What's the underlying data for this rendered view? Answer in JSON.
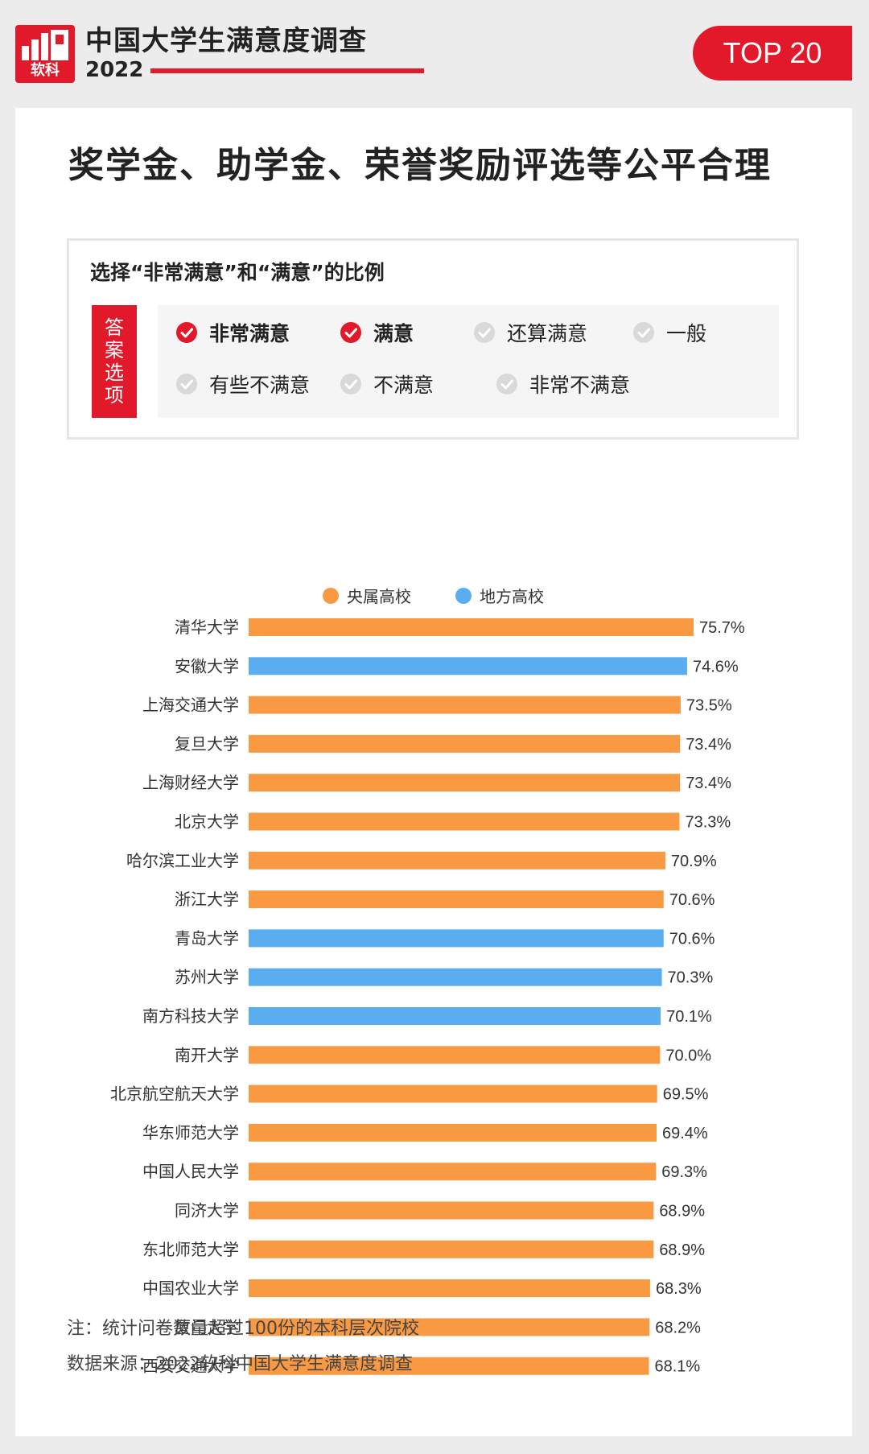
{
  "header": {
    "logo_text": "软科",
    "title": "中国大学生满意度调查",
    "year": "2022",
    "badge": "TOP 20",
    "brand_color": "#e2192a"
  },
  "main": {
    "title": "奖学金、助学金、荣誉奖励评选等公平合理"
  },
  "answer_box": {
    "question": "选择“非常满意”和“满意”的比例",
    "tag": [
      "答",
      "案",
      "选",
      "项"
    ],
    "options": [
      {
        "label": "非常满意",
        "selected": true
      },
      {
        "label": "满意",
        "selected": true
      },
      {
        "label": "还算满意",
        "selected": false
      },
      {
        "label": "一般",
        "selected": false
      },
      {
        "label": "有些不满意",
        "selected": false
      },
      {
        "label": "不满意",
        "selected": false
      },
      {
        "label": "非常不满意",
        "selected": false
      }
    ],
    "check_icon": "check-circle-icon"
  },
  "chart_data": {
    "type": "bar",
    "orientation": "horizontal",
    "legend_position": "top-center",
    "legend": [
      {
        "name": "央属高校",
        "color": "#f99a43"
      },
      {
        "name": "地方高校",
        "color": "#5aaef0"
      }
    ],
    "categories": [
      "清华大学",
      "安徽大学",
      "上海交通大学",
      "复旦大学",
      "上海财经大学",
      "北京大学",
      "哈尔滨工业大学",
      "浙江大学",
      "青岛大学",
      "苏州大学",
      "南方科技大学",
      "南开大学",
      "北京航空航天大学",
      "华东师范大学",
      "中国人民大学",
      "同济大学",
      "东北师范大学",
      "中国农业大学",
      "厦门大学",
      "西安交通大学"
    ],
    "values": [
      75.7,
      74.6,
      73.5,
      73.4,
      73.4,
      73.3,
      70.9,
      70.6,
      70.6,
      70.3,
      70.1,
      70.0,
      69.5,
      69.4,
      69.3,
      68.9,
      68.9,
      68.3,
      68.2,
      68.1
    ],
    "labels": [
      "75.7%",
      "74.6%",
      "73.5%",
      "73.4%",
      "73.4%",
      "73.3%",
      "70.9%",
      "70.6%",
      "70.6%",
      "70.3%",
      "70.1%",
      "70.0%",
      "69.5%",
      "69.4%",
      "69.3%",
      "68.9%",
      "68.9%",
      "68.3%",
      "68.2%",
      "68.1%"
    ],
    "groups": [
      "央属高校",
      "地方高校",
      "央属高校",
      "央属高校",
      "央属高校",
      "央属高校",
      "央属高校",
      "央属高校",
      "地方高校",
      "地方高校",
      "地方高校",
      "央属高校",
      "央属高校",
      "央属高校",
      "央属高校",
      "央属高校",
      "央属高校",
      "央属高校",
      "央属高校",
      "央属高校"
    ],
    "value_unit": "%",
    "grid": false
  },
  "footnotes": {
    "note": "注：统计问卷数量超过100份的本科层次院校",
    "source": "数据来源：2022软科中国大学生满意度调查"
  }
}
